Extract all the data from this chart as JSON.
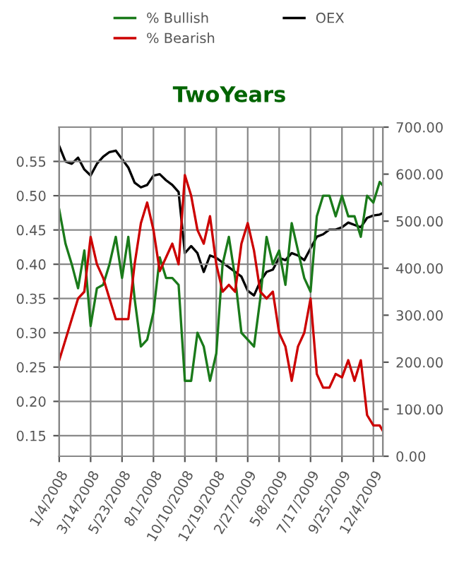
{
  "chart_data": {
    "type": "line",
    "title": "TwoYears",
    "x": [
      "2008-01-04",
      "2008-01-18",
      "2008-02-01",
      "2008-02-15",
      "2008-02-29",
      "2008-03-14",
      "2008-03-28",
      "2008-04-11",
      "2008-04-25",
      "2008-05-09",
      "2008-05-23",
      "2008-06-06",
      "2008-06-20",
      "2008-07-04",
      "2008-07-18",
      "2008-08-01",
      "2008-08-15",
      "2008-08-29",
      "2008-09-12",
      "2008-09-26",
      "2008-10-10",
      "2008-10-24",
      "2008-11-07",
      "2008-11-21",
      "2008-12-05",
      "2008-12-19",
      "2009-01-02",
      "2009-01-16",
      "2009-01-30",
      "2009-02-13",
      "2009-02-27",
      "2009-03-13",
      "2009-03-27",
      "2009-04-10",
      "2009-04-24",
      "2009-05-08",
      "2009-05-22",
      "2009-06-05",
      "2009-06-19",
      "2009-07-03",
      "2009-07-17",
      "2009-07-31",
      "2009-08-14",
      "2009-08-28",
      "2009-09-11",
      "2009-09-25",
      "2009-10-09",
      "2009-10-23",
      "2009-11-06",
      "2009-11-20",
      "2009-12-04",
      "2009-12-18",
      "2009-12-25"
    ],
    "series": [
      {
        "name": "% Bullish",
        "color": "#1a7a1a",
        "values": [
          0.48,
          0.43,
          0.4,
          0.365,
          0.42,
          0.31,
          0.365,
          0.37,
          0.4,
          0.44,
          0.38,
          0.44,
          0.35,
          0.28,
          0.29,
          0.33,
          0.41,
          0.38,
          0.38,
          0.37,
          0.23,
          0.23,
          0.3,
          0.28,
          0.23,
          0.27,
          0.4,
          0.44,
          0.38,
          0.3,
          0.29,
          0.28,
          0.35,
          0.44,
          0.4,
          0.42,
          0.37,
          0.46,
          0.42,
          0.38,
          0.36,
          0.47,
          0.5,
          0.5,
          0.47,
          0.5,
          0.47,
          0.47,
          0.44,
          0.5,
          0.49,
          0.52,
          0.515
        ]
      },
      {
        "name": "% Bearish",
        "color": "#cc0000",
        "values": [
          0.26,
          0.29,
          0.32,
          0.35,
          0.36,
          0.44,
          0.4,
          0.38,
          0.35,
          0.32,
          0.32,
          0.32,
          0.4,
          0.46,
          0.49,
          0.45,
          0.39,
          0.41,
          0.43,
          0.4,
          0.53,
          0.5,
          0.45,
          0.43,
          0.47,
          0.4,
          0.36,
          0.37,
          0.36,
          0.43,
          0.46,
          0.42,
          0.36,
          0.35,
          0.36,
          0.3,
          0.28,
          0.23,
          0.28,
          0.3,
          0.35,
          0.24,
          0.22,
          0.22,
          0.24,
          0.235,
          0.26,
          0.23,
          0.26,
          0.18,
          0.165,
          0.165,
          0.157
        ]
      },
      {
        "name": "OEX",
        "color": "#000000",
        "axis": "y2",
        "values": [
          660,
          627,
          622,
          635,
          610,
          597,
          622,
          637,
          647,
          650,
          632,
          614,
          582,
          572,
          577,
          597,
          600,
          587,
          577,
          562,
          432,
          447,
          432,
          392,
          427,
          422,
          412,
          402,
          392,
          382,
          352,
          342,
          372,
          392,
          397,
          422,
          417,
          432,
          427,
          417,
          442,
          467,
          472,
          482,
          482,
          487,
          497,
          492,
          487,
          507,
          512,
          514,
          517
        ]
      }
    ],
    "xlim": [
      "2008-01-04",
      "2009-12-25"
    ],
    "xticks": [
      {
        "value": "2008-01-04",
        "label": "1/4/2008"
      },
      {
        "value": "2008-03-14",
        "label": "3/14/2008"
      },
      {
        "value": "2008-05-23",
        "label": "5/23/2008"
      },
      {
        "value": "2008-08-01",
        "label": "8/1/2008"
      },
      {
        "value": "2008-10-10",
        "label": "10/10/2008"
      },
      {
        "value": "2008-12-19",
        "label": "12/19/2008"
      },
      {
        "value": "2009-02-27",
        "label": "2/27/2009"
      },
      {
        "value": "2009-05-08",
        "label": "5/8/2009"
      },
      {
        "value": "2009-07-17",
        "label": "7/17/2009"
      },
      {
        "value": "2009-09-25",
        "label": "9/25/2009"
      },
      {
        "value": "2009-12-04",
        "label": "12/4/2009"
      }
    ],
    "ylim": [
      0.12,
      0.6
    ],
    "yticks": [
      0.15,
      {
        "value": 0.2,
        "label": "0.20"
      },
      0.25,
      {
        "value": 0.3,
        "label": "0.30"
      },
      0.35,
      {
        "value": 0.4,
        "label": "0.40"
      },
      0.45,
      {
        "value": 0.5,
        "label": "0.50"
      },
      0.55
    ],
    "y2lim": [
      0,
      700
    ],
    "y2ticks": [
      {
        "value": 0,
        "label": "0.00"
      },
      {
        "value": 100,
        "label": "100.00"
      },
      {
        "value": 200,
        "label": "200.00"
      },
      {
        "value": 300,
        "label": "300.00"
      },
      {
        "value": 400,
        "label": "400.00"
      },
      {
        "value": 500,
        "label": "500.00"
      },
      {
        "value": 600,
        "label": "600.00"
      },
      {
        "value": 700,
        "label": "700.00"
      }
    ],
    "grid": true,
    "legend": "top",
    "marker": "none",
    "line_style": "solid"
  }
}
